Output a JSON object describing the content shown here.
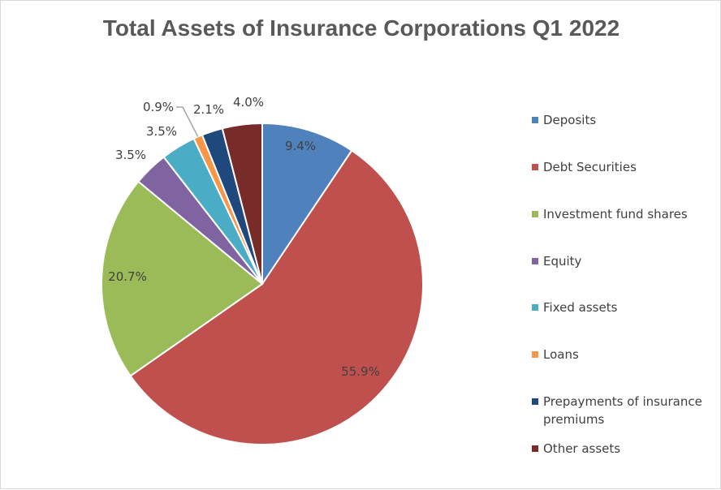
{
  "chart_data": {
    "type": "pie",
    "title": "Total Assets of Insurance Corporations Q1 2022",
    "categories": [
      "Deposits",
      "Debt Securities",
      "Investment fund shares",
      "Equity",
      "Fixed assets",
      "Loans",
      "Prepayments of insurance premiums",
      "Other assets"
    ],
    "values": [
      9.4,
      55.9,
      20.7,
      3.5,
      3.5,
      0.9,
      2.1,
      4.0
    ],
    "labels": [
      "9.4%",
      "55.9%",
      "20.7%",
      "3.5%",
      "3.5%",
      "0.9%",
      "2.1%",
      "4.0%"
    ],
    "colors": [
      "#4f81bd",
      "#c0504d",
      "#9bbb59",
      "#8064a2",
      "#4bacc6",
      "#f79646",
      "#1f497d",
      "#772c2a"
    ],
    "legend_position": "right"
  }
}
